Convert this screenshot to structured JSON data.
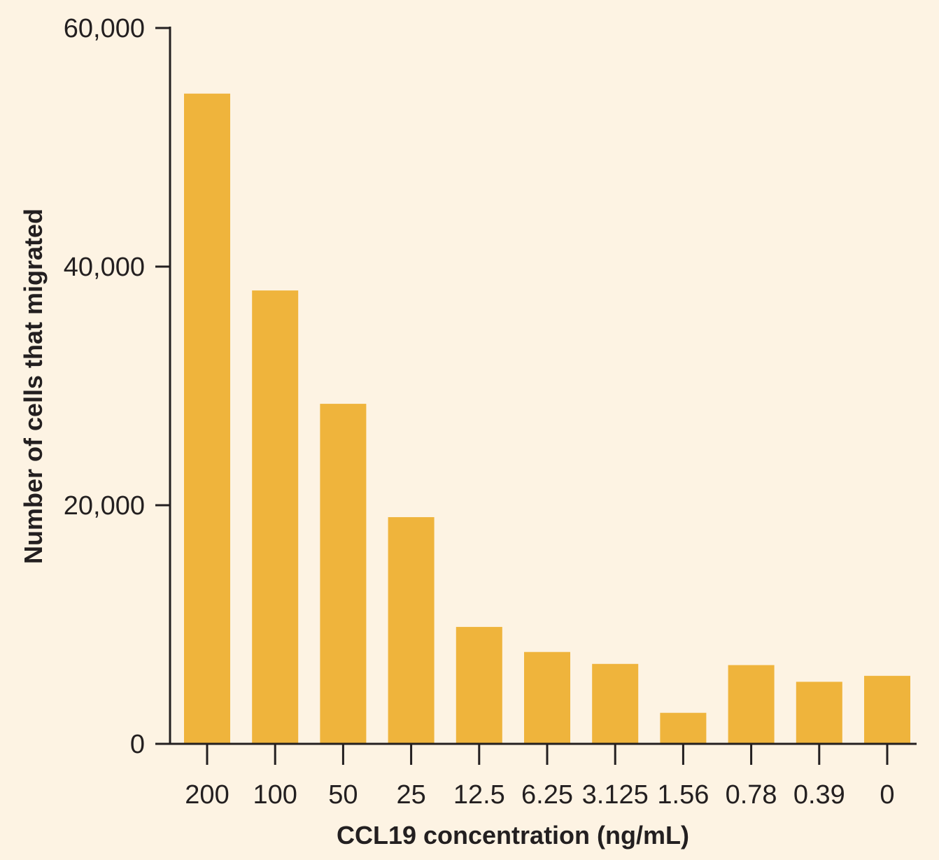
{
  "colors": {
    "background": "#fdf3e3",
    "bar": "#efb43c",
    "axis": "#231f20",
    "text": "#231f20"
  },
  "chart_data": {
    "type": "bar",
    "title": "",
    "xlabel": "CCL19 concentration (ng/mL)",
    "ylabel": "Number of cells that migrated",
    "categories": [
      "200",
      "100",
      "50",
      "25",
      "12.5",
      "6.25",
      "3.125",
      "1.56",
      "0.78",
      "0.39",
      "0"
    ],
    "values": [
      54500,
      38000,
      28500,
      19000,
      9800,
      7700,
      6700,
      2600,
      6600,
      5200,
      5700
    ],
    "ylim": [
      0,
      60000
    ],
    "yticks": [
      0,
      20000,
      40000,
      60000
    ],
    "ytick_labels": [
      "0",
      "20,000",
      "40,000",
      "60,000"
    ],
    "grid": false,
    "legend": "none"
  }
}
